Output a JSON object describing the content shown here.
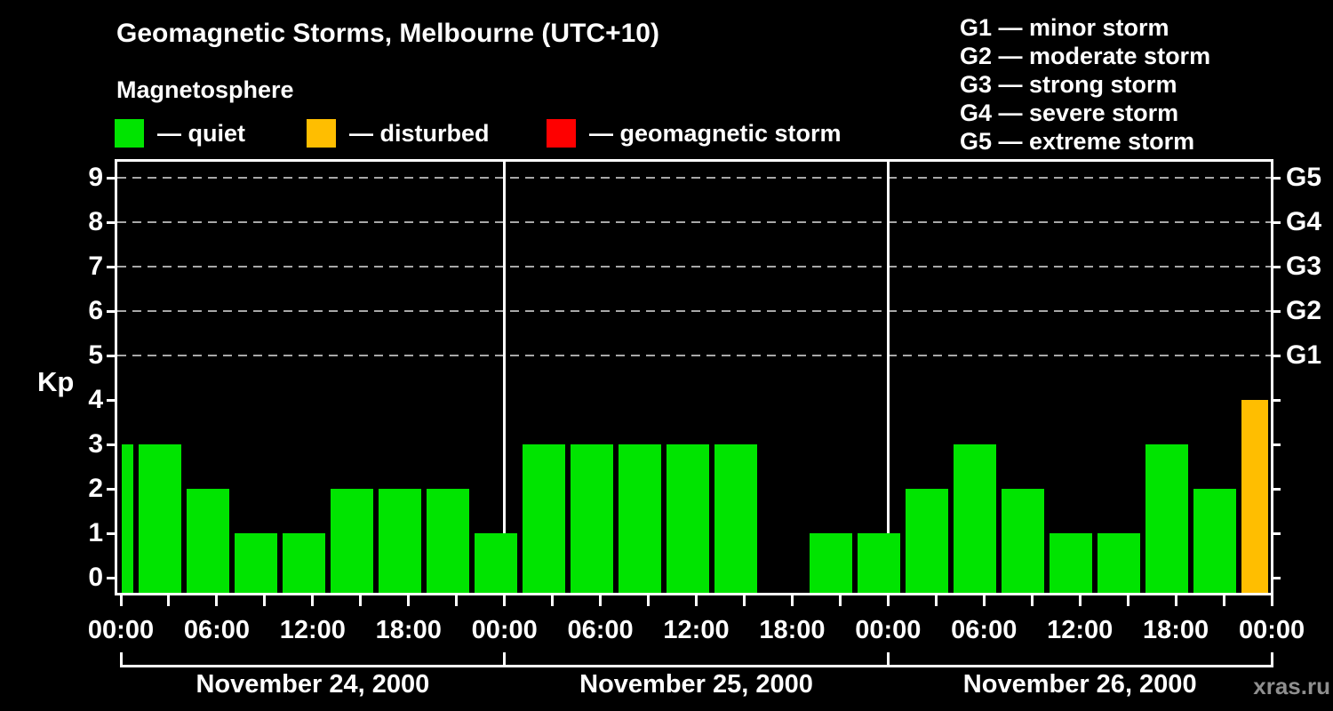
{
  "header": {
    "title": "Geomagnetic Storms, Melbourne (UTC+10)",
    "subtitle": "Magnetosphere",
    "legend": [
      {
        "label": "— quiet",
        "color": "#00e400",
        "status": "quiet"
      },
      {
        "label": "— disturbed",
        "color": "#ffbe00",
        "status": "disturbed"
      },
      {
        "label": "— geomagnetic storm",
        "color": "#fe0000",
        "status": "storm"
      }
    ],
    "g_legend": [
      "G1 — minor storm",
      "G2 — moderate storm",
      "G3 — strong storm",
      "G4 — severe storm",
      "G5 — extreme storm"
    ]
  },
  "watermark": "xras.ru",
  "colors": {
    "background": "#000000",
    "axis": "#ffffff",
    "text": "#ffffff",
    "grid": "#a8a8a8",
    "quiet": "#00e400",
    "disturbed": "#ffbe00",
    "storm": "#fe0000",
    "watermark": "#8f8f8f"
  },
  "chart_data": {
    "type": "bar",
    "title": "Geomagnetic Storms, Melbourne (UTC+10)",
    "subtitle": "Magnetosphere",
    "ylabel": "Kp",
    "ylim": [
      0,
      9
    ],
    "yticks": [
      0,
      1,
      2,
      3,
      4,
      5,
      6,
      7,
      8,
      9
    ],
    "grid": "horizontal dashed at Kp 5-9",
    "legend_position": "top",
    "right_axis_labels": [
      {
        "kp": 5,
        "label": "G1"
      },
      {
        "kp": 6,
        "label": "G2"
      },
      {
        "kp": 7,
        "label": "G3"
      },
      {
        "kp": 8,
        "label": "G4"
      },
      {
        "kp": 9,
        "label": "G5"
      }
    ],
    "grid_levels": [
      5,
      6,
      7,
      8,
      9
    ],
    "interval_hours": 3,
    "x_tick_interval_hours": 3,
    "x_label_interval_hours": 6,
    "x_time_labels": [
      "00:00",
      "06:00",
      "12:00",
      "18:00",
      "00:00",
      "06:00",
      "12:00",
      "18:00",
      "00:00",
      "06:00",
      "12:00",
      "18:00",
      "00:00"
    ],
    "leading_partial_bar": {
      "kp": 3,
      "status": "quiet",
      "note": "clipped at left axis"
    },
    "days": [
      {
        "date_label": "November 24, 2000",
        "kp": [
          3,
          2,
          1,
          1,
          2,
          2,
          2,
          1
        ],
        "status": [
          "quiet",
          "quiet",
          "quiet",
          "quiet",
          "quiet",
          "quiet",
          "quiet",
          "quiet"
        ]
      },
      {
        "date_label": "November 25, 2000",
        "kp": [
          3,
          3,
          3,
          3,
          3,
          0,
          1,
          1
        ],
        "status": [
          "quiet",
          "quiet",
          "quiet",
          "quiet",
          "quiet",
          "quiet",
          "quiet",
          "quiet"
        ]
      },
      {
        "date_label": "November 26, 2000",
        "kp": [
          2,
          3,
          2,
          1,
          1,
          3,
          2,
          4
        ],
        "status": [
          "quiet",
          "quiet",
          "quiet",
          "quiet",
          "quiet",
          "quiet",
          "quiet",
          "disturbed"
        ],
        "last_bar_note": "clipped at right axis"
      }
    ]
  }
}
